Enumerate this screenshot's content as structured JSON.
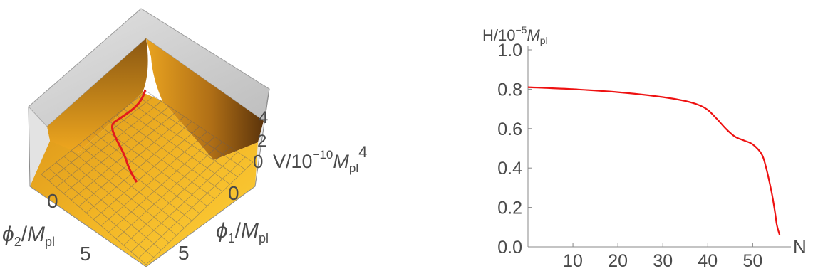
{
  "chart_data": [
    {
      "type": "surface3d",
      "axes": {
        "z_label_text": "V/10",
        "z_label_exp": "−10",
        "z_label_M": "M",
        "z_label_sub": "pl",
        "z_label_pow": "4",
        "phi1_label": "ϕ",
        "phi1_sub": "1",
        "phi1_M": "M",
        "phi1_msub": "pl",
        "phi2_label": "ϕ",
        "phi2_sub": "2",
        "phi2_M": "M",
        "phi2_msub": "pl"
      },
      "ticks": {
        "phi2": [
          "0",
          "5"
        ],
        "phi1": [
          "0",
          "5"
        ],
        "z": [
          "0",
          "2",
          "4"
        ]
      },
      "colors": {
        "surface_light": "#f7c229",
        "surface_dark": "#7a4a10",
        "trajectory": "#e31a1c",
        "box_wall": "#c9c9c9"
      }
    },
    {
      "type": "line",
      "title_parts": {
        "H": "H/10",
        "exp": "−5",
        "M": "M",
        "sub": "pl"
      },
      "xlabel": "N",
      "x_ticks": [
        "10",
        "20",
        "30",
        "40",
        "50"
      ],
      "y_ticks": [
        "0.0",
        "0.2",
        "0.4",
        "0.6",
        "0.8",
        "1.0"
      ],
      "xlim": [
        0,
        58.5
      ],
      "ylim": [
        0,
        1.0
      ],
      "color": "#ee1111",
      "x": [
        0,
        10,
        20,
        30,
        35,
        38,
        40,
        42,
        44,
        46,
        48,
        50,
        52,
        53,
        54,
        54.5,
        55,
        55.3,
        55.6,
        56
      ],
      "y": [
        0.81,
        0.8,
        0.785,
        0.76,
        0.74,
        0.72,
        0.695,
        0.65,
        0.6,
        0.56,
        0.54,
        0.52,
        0.47,
        0.4,
        0.3,
        0.24,
        0.17,
        0.12,
        0.09,
        0.06
      ]
    }
  ]
}
